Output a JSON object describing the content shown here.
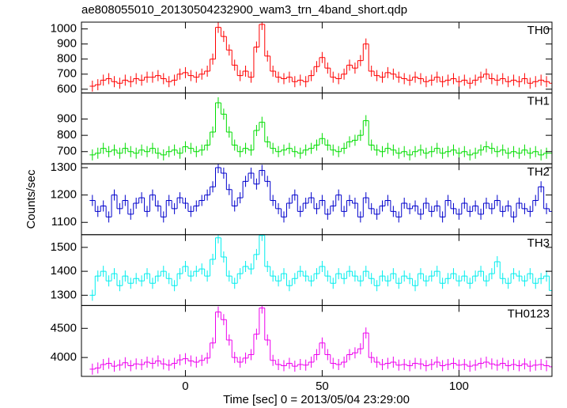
{
  "chart_data": {
    "type": "step",
    "title": "ae808055010_20130504232900_wam3_trn_4band_short.qdp",
    "xlabel": "Time [sec] 0 = 2013/05/04 23:29:00",
    "ylabel": "Counts/sec",
    "xlim": [
      -38,
      134
    ],
    "xticks": [
      0,
      50,
      100
    ],
    "x": [
      -34,
      -32,
      -30,
      -28,
      -26,
      -24,
      -22,
      -20,
      -18,
      -16,
      -14,
      -12,
      -10,
      -8,
      -6,
      -4,
      -2,
      0,
      2,
      4,
      6,
      8,
      10,
      12,
      14,
      16,
      18,
      20,
      22,
      24,
      26,
      28,
      30,
      32,
      34,
      36,
      38,
      40,
      42,
      44,
      46,
      48,
      50,
      52,
      54,
      56,
      58,
      60,
      62,
      64,
      66,
      68,
      70,
      72,
      74,
      76,
      78,
      80,
      82,
      84,
      86,
      88,
      90,
      92,
      94,
      96,
      98,
      100,
      102,
      104,
      106,
      108,
      110,
      112,
      114,
      116,
      118,
      120,
      122,
      124,
      126,
      128,
      130,
      132,
      134
    ],
    "series": [
      {
        "name": "TH0",
        "color": "#ff0000",
        "ylim": [
          575,
          1045
        ],
        "yticks": [
          600,
          700,
          800,
          900,
          1000
        ],
        "values": [
          620,
          630,
          660,
          670,
          650,
          640,
          660,
          650,
          670,
          660,
          680,
          680,
          690,
          670,
          650,
          660,
          700,
          710,
          690,
          680,
          700,
          720,
          800,
          1010,
          950,
          860,
          760,
          690,
          720,
          680,
          880,
          1030,
          820,
          720,
          680,
          670,
          680,
          650,
          660,
          650,
          690,
          750,
          810,
          740,
          680,
          670,
          700,
          760,
          740,
          790,
          900,
          720,
          690,
          680,
          710,
          700,
          680,
          670,
          660,
          680,
          670,
          650,
          660,
          680,
          650,
          660,
          670,
          650,
          660,
          640,
          660,
          680,
          700,
          670,
          660,
          670,
          650,
          660,
          650,
          670,
          640,
          650,
          660,
          650,
          640
        ]
      },
      {
        "name": "TH1",
        "color": "#00dd00",
        "ylim": [
          625,
          1060
        ],
        "yticks": [
          700,
          800,
          900
        ],
        "values": [
          680,
          690,
          720,
          700,
          710,
          690,
          720,
          700,
          690,
          710,
          700,
          720,
          690,
          680,
          700,
          710,
          690,
          730,
          720,
          700,
          710,
          740,
          820,
          1000,
          930,
          820,
          740,
          700,
          720,
          710,
          830,
          880,
          760,
          720,
          700,
          710,
          720,
          700,
          690,
          710,
          720,
          740,
          780,
          740,
          710,
          700,
          720,
          760,
          770,
          800,
          890,
          740,
          710,
          700,
          720,
          710,
          690,
          700,
          680,
          700,
          710,
          690,
          700,
          720,
          690,
          700,
          710,
          690,
          700,
          680,
          690,
          710,
          730,
          720,
          700,
          710,
          690,
          700,
          690,
          710,
          690,
          700,
          680,
          690,
          690
        ]
      },
      {
        "name": "TH2",
        "color": "#0000cc",
        "ylim": [
          1055,
          1314
        ],
        "yticks": [
          1100,
          1200,
          1300
        ],
        "values": [
          1180,
          1140,
          1160,
          1120,
          1200,
          1150,
          1180,
          1130,
          1170,
          1190,
          1140,
          1200,
          1160,
          1120,
          1180,
          1150,
          1190,
          1170,
          1140,
          1160,
          1180,
          1200,
          1230,
          1300,
          1280,
          1220,
          1160,
          1190,
          1250,
          1280,
          1240,
          1290,
          1250,
          1180,
          1150,
          1120,
          1170,
          1200,
          1140,
          1170,
          1190,
          1150,
          1180,
          1130,
          1160,
          1200,
          1140,
          1180,
          1170,
          1120,
          1190,
          1150,
          1130,
          1160,
          1180,
          1140,
          1120,
          1170,
          1150,
          1160,
          1130,
          1170,
          1140,
          1160,
          1120,
          1180,
          1150,
          1130,
          1170,
          1140,
          1160,
          1130,
          1170,
          1150,
          1180,
          1140,
          1160,
          1120,
          1170,
          1150,
          1140,
          1180,
          1230,
          1150,
          1140
        ]
      },
      {
        "name": "TH3",
        "color": "#00eeee",
        "ylim": [
          1257,
          1553
        ],
        "yticks": [
          1300,
          1400,
          1500
        ],
        "values": [
          1300,
          1380,
          1400,
          1360,
          1390,
          1340,
          1380,
          1350,
          1370,
          1360,
          1390,
          1350,
          1380,
          1400,
          1370,
          1340,
          1390,
          1420,
          1380,
          1400,
          1410,
          1380,
          1450,
          1540,
          1460,
          1380,
          1350,
          1390,
          1420,
          1410,
          1470,
          1550,
          1420,
          1380,
          1360,
          1390,
          1340,
          1370,
          1400,
          1380,
          1360,
          1390,
          1420,
          1380,
          1350,
          1390,
          1370,
          1400,
          1380,
          1360,
          1400,
          1370,
          1340,
          1380,
          1360,
          1390,
          1350,
          1380,
          1370,
          1340,
          1390,
          1360,
          1380,
          1400,
          1350,
          1370,
          1390,
          1360,
          1380,
          1350,
          1380,
          1400,
          1360,
          1390,
          1440,
          1370,
          1350,
          1390,
          1380,
          1360,
          1390,
          1350,
          1370,
          1380,
          1320
        ]
      },
      {
        "name": "TH0123",
        "color": "#ee00ee",
        "ylim": [
          3676,
          4892
        ],
        "yticks": [
          4000,
          4500
        ],
        "values": [
          3800,
          3820,
          3880,
          3900,
          3850,
          3870,
          3910,
          3860,
          3890,
          3880,
          3920,
          3900,
          3940,
          3890,
          3870,
          3900,
          3960,
          3980,
          3940,
          3920,
          3950,
          3990,
          4250,
          4780,
          4650,
          4300,
          4000,
          3920,
          3990,
          4050,
          4400,
          4850,
          4300,
          3950,
          3880,
          3860,
          3900,
          3850,
          3880,
          3870,
          3920,
          4050,
          4250,
          4050,
          3900,
          3880,
          3920,
          4050,
          4080,
          4150,
          4420,
          4000,
          3920,
          3880,
          3900,
          3920,
          3870,
          3880,
          3860,
          3900,
          3890,
          3860,
          3880,
          3920,
          3860,
          3880,
          3900,
          3870,
          3880,
          3850,
          3870,
          3900,
          3920,
          3890,
          3870,
          3900,
          3860,
          3880,
          3860,
          3890,
          3850,
          3870,
          3880,
          3860,
          3840
        ]
      }
    ]
  }
}
